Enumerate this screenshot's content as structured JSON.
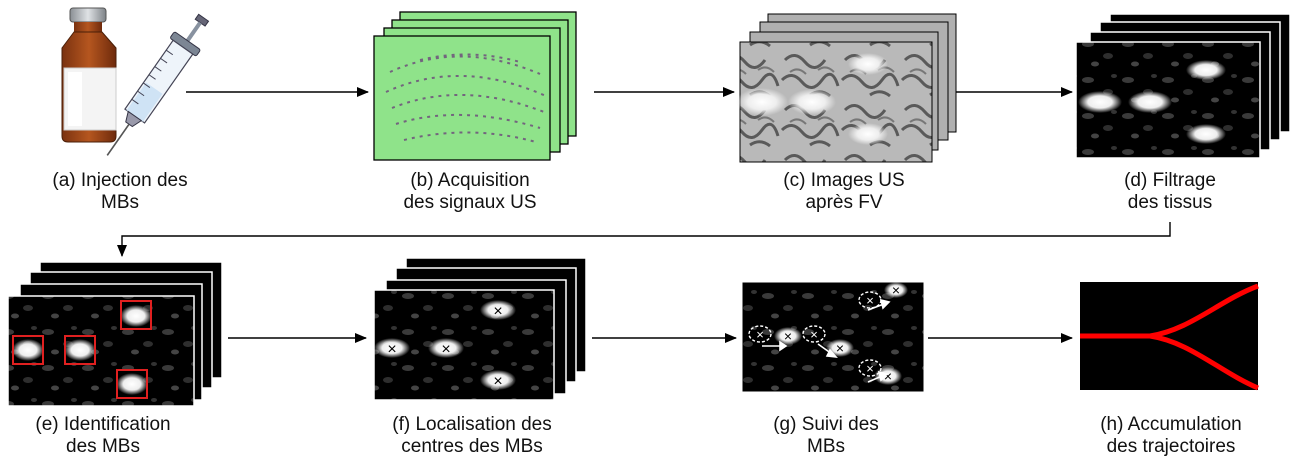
{
  "steps": [
    {
      "id": "a",
      "line1": "(a) Injection des",
      "line2": "MBs"
    },
    {
      "id": "b",
      "line1": "(b) Acquisition",
      "line2": "des signaux US"
    },
    {
      "id": "c",
      "line1": "(c) Images US",
      "line2": "après FV"
    },
    {
      "id": "d",
      "line1": "(d) Filtrage",
      "line2": "des tissus"
    },
    {
      "id": "e",
      "line1": "(e) Identification",
      "line2": "des MBs"
    },
    {
      "id": "f",
      "line1": "(f) Localisation des",
      "line2": "centres des MBs"
    },
    {
      "id": "g",
      "line1": "(g) Suivi des",
      "line2": "MBs"
    },
    {
      "id": "h",
      "line1": "(h) Accumulation",
      "line2": "des trajectoires"
    }
  ],
  "colors": {
    "signal_bg": "#8fe38a",
    "vial_glass": "#a0522d",
    "vial_cap": "#b0b4b8",
    "detection_box": "#e02020",
    "trajectory": "#ff0000",
    "arrow": "#000000"
  },
  "markers": {
    "center": "×"
  }
}
